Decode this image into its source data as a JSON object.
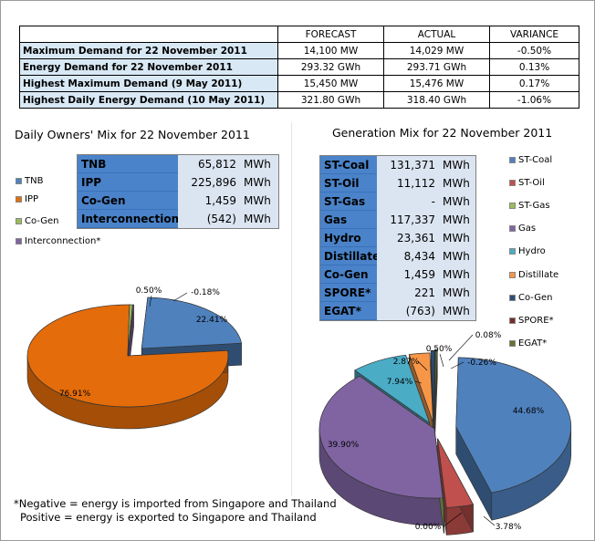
{
  "summary_table": {
    "headers": [
      "FORECAST",
      "ACTUAL",
      "VARIANCE"
    ],
    "rows": [
      {
        "label": "Maximum Demand for 22 November 2011",
        "forecast": "14,100 MW",
        "actual": "14,029 MW",
        "variance": "-0.50%"
      },
      {
        "label": "Energy Demand for 22 November 2011",
        "forecast": "293.32 GWh",
        "actual": "293.71 GWh",
        "variance": "0.13%"
      },
      {
        "label": "Highest Maximum Demand (9 May 2011)",
        "forecast": "15,450 MW",
        "actual": "15,476 MW",
        "variance": "0.17%"
      },
      {
        "label": "Highest Daily Energy Demand (10 May 2011)",
        "forecast": "321.80 GWh",
        "actual": "318.40 GWh",
        "variance": "-1.06%"
      }
    ]
  },
  "owners_mix": {
    "title": "Daily Owners' Mix for 22 November 2011",
    "rows": [
      {
        "name": "TNB",
        "value": "65,812",
        "unit": "MWh"
      },
      {
        "name": "IPP",
        "value": "225,896",
        "unit": "MWh"
      },
      {
        "name": "Co-Gen",
        "value": "1,459",
        "unit": "MWh"
      },
      {
        "name": "Interconnection*",
        "value": "(542)",
        "unit": "MWh"
      }
    ],
    "legend": [
      "TNB",
      "IPP",
      "Co-Gen",
      "Interconnection*"
    ]
  },
  "generation_mix": {
    "title": "Generation Mix for 22 November 2011",
    "rows": [
      {
        "name": "ST-Coal",
        "value": "131,371",
        "unit": "MWh"
      },
      {
        "name": "ST-Oil",
        "value": "11,112",
        "unit": "MWh"
      },
      {
        "name": "ST-Gas",
        "value": "-",
        "unit": "MWh"
      },
      {
        "name": "Gas",
        "value": "117,337",
        "unit": "MWh"
      },
      {
        "name": "Hydro",
        "value": "23,361",
        "unit": "MWh"
      },
      {
        "name": "Distillate",
        "value": "8,434",
        "unit": "MWh"
      },
      {
        "name": "Co-Gen",
        "value": "1,459",
        "unit": "MWh"
      },
      {
        "name": "SPORE*",
        "value": "221",
        "unit": "MWh"
      },
      {
        "name": "EGAT*",
        "value": "(763)",
        "unit": "MWh"
      }
    ],
    "legend": [
      "ST-Coal",
      "ST-Oil",
      "ST-Gas",
      "Gas",
      "Hydro",
      "Distillate",
      "Co-Gen",
      "SPORE*",
      "EGAT*"
    ]
  },
  "note": {
    "line1": "*Negative = energy is imported from Singapore and Thailand",
    "line2": "Positive = energy is exported to Singapore and Thailand"
  },
  "colors": {
    "TNB": "#4f81bd",
    "IPP": "#e46c0a",
    "Co-Gen": "#9bbb59",
    "Interconnection": "#8064a2",
    "ST-Coal": "#4f81bd",
    "ST-Oil": "#c0504d",
    "ST-Gas": "#9bbb59",
    "Gas": "#8064a2",
    "Hydro": "#4bacc6",
    "Distillate": "#f79646",
    "Co-Gen-gen": "#2c4d75",
    "SPORE": "#772c2a",
    "EGAT": "#5f7530"
  },
  "chart_data": [
    {
      "type": "pie",
      "title": "Daily Owners' Mix for 22 November 2011",
      "categories": [
        "TNB",
        "IPP",
        "Co-Gen",
        "Interconnection*"
      ],
      "values": [
        22.41,
        76.91,
        0.5,
        -0.18
      ],
      "labels": [
        "22.41%",
        "76.91%",
        "0.50%",
        "-0.18%"
      ],
      "legend": "left"
    },
    {
      "type": "pie",
      "title": "Generation Mix for 22 November 2011",
      "categories": [
        "ST-Coal",
        "ST-Oil",
        "ST-Gas",
        "Gas",
        "Hydro",
        "Distillate",
        "Co-Gen",
        "SPORE*",
        "EGAT*"
      ],
      "values": [
        44.68,
        3.78,
        0.0,
        39.9,
        7.94,
        2.87,
        0.5,
        0.08,
        -0.26
      ],
      "labels": [
        "44.68%",
        "3.78%",
        "0.00%",
        "39.90%",
        "7.94%",
        "2.87%",
        "0.50%",
        "0.08%",
        "-0.26%"
      ],
      "legend": "right"
    }
  ]
}
